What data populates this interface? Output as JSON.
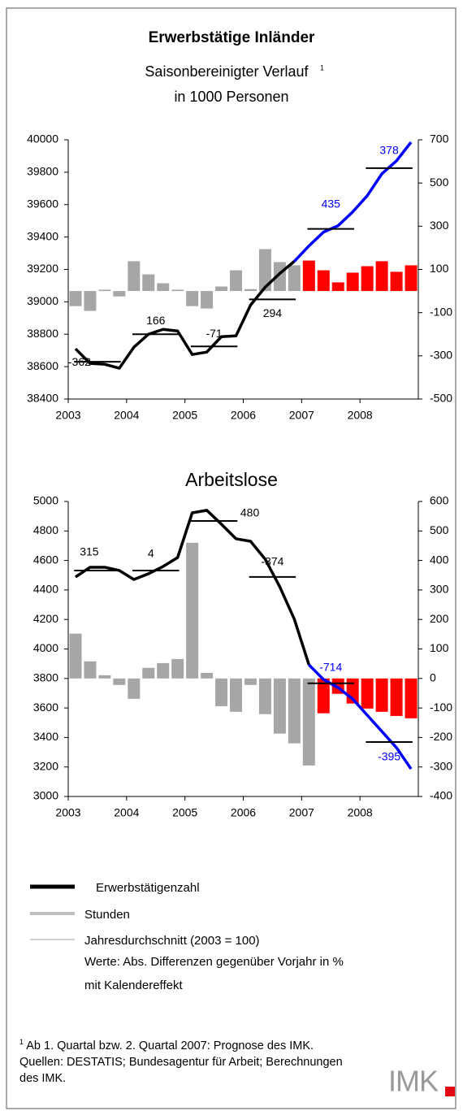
{
  "chart_data": [
    {
      "type": "combo",
      "title": "Erwerbstätige Inländer",
      "subtitle": "Saisonbereinigter Verlauf",
      "subtitle_note": "1",
      "unit": "in 1000 Personen",
      "xlim": [
        2003,
        2009
      ],
      "xticks": [
        2003,
        2004,
        2005,
        2006,
        2007,
        2008
      ],
      "ylim": [
        38400,
        40000
      ],
      "yticks": [
        38400,
        38600,
        38800,
        39000,
        39200,
        39400,
        39600,
        39800,
        40000
      ],
      "y2lim": [
        -500,
        700
      ],
      "y2ticks": [
        -500,
        -300,
        -100,
        100,
        300,
        500,
        700
      ],
      "x": [
        2003.125,
        2003.375,
        2003.625,
        2003.875,
        2004.125,
        2004.375,
        2004.625,
        2004.875,
        2005.125,
        2005.375,
        2005.625,
        2005.875,
        2006.125,
        2006.375,
        2006.625,
        2006.875,
        2007.125,
        2007.375,
        2007.625,
        2007.875,
        2008.125,
        2008.375,
        2008.625,
        2008.875
      ],
      "series": [
        {
          "kind": "bar",
          "axis": "y2",
          "color": "#a6a6a6",
          "values": [
            -70,
            -92,
            6,
            -25,
            138,
            77,
            36,
            6,
            -70,
            -81,
            21,
            96,
            9,
            194,
            134,
            119,
            null,
            null,
            null,
            null,
            null,
            null,
            null,
            null
          ]
        },
        {
          "kind": "bar",
          "axis": "y2",
          "color": "#ff0000",
          "values": [
            null,
            null,
            null,
            null,
            null,
            null,
            null,
            null,
            null,
            null,
            null,
            null,
            null,
            null,
            null,
            null,
            141,
            96,
            40,
            85,
            115,
            138,
            89,
            119
          ]
        },
        {
          "kind": "line",
          "color": "#000000",
          "values": [
            38710,
            38620,
            38615,
            38590,
            38720,
            38800,
            38830,
            38820,
            38675,
            38690,
            38785,
            38790,
            38980,
            39090,
            39175,
            39250,
            null,
            null,
            null,
            null,
            null,
            null,
            null,
            null
          ]
        },
        {
          "kind": "line",
          "color": "#0000ff",
          "values": [
            null,
            null,
            null,
            null,
            null,
            null,
            null,
            null,
            null,
            null,
            null,
            null,
            null,
            null,
            null,
            39250,
            39345,
            39430,
            39470,
            39555,
            39655,
            39790,
            39870,
            39985
          ]
        }
      ],
      "annual": {
        "x": [
          2003,
          2004,
          2005,
          2006,
          2007,
          2008
        ],
        "values": [
          38630,
          38800,
          38725,
          39015,
          39450,
          39825
        ],
        "labels": [
          -362,
          166,
          -71,
          294,
          435,
          378
        ],
        "label_colors": [
          "#000000",
          "#000000",
          "#000000",
          "#000000",
          "#0000ff",
          "#0000ff"
        ]
      }
    },
    {
      "type": "combo",
      "title": "Arbeitslose",
      "xlim": [
        2003,
        2009
      ],
      "xticks": [
        2003,
        2004,
        2005,
        2006,
        2007,
        2008
      ],
      "ylim": [
        3000,
        5000
      ],
      "yticks": [
        3000,
        3200,
        3400,
        3600,
        3800,
        4000,
        4200,
        4400,
        4600,
        4800,
        5000
      ],
      "y2lim": [
        -400,
        600
      ],
      "y2ticks": [
        -400,
        -300,
        -200,
        -100,
        0,
        100,
        200,
        300,
        400,
        500,
        600
      ],
      "x": [
        2003.125,
        2003.375,
        2003.625,
        2003.875,
        2004.125,
        2004.375,
        2004.625,
        2004.875,
        2005.125,
        2005.375,
        2005.625,
        2005.875,
        2006.125,
        2006.375,
        2006.625,
        2006.875,
        2007.125,
        2007.375,
        2007.625,
        2007.875,
        2008.125,
        2008.375,
        2008.625,
        2008.875
      ],
      "series": [
        {
          "kind": "bar",
          "axis": "y2",
          "color": "#a6a6a6",
          "values": [
            152,
            58,
            11,
            -22,
            -69,
            36,
            52,
            66,
            460,
            19,
            -94,
            -113,
            -22,
            -121,
            -187,
            -220,
            -295,
            null,
            null,
            null,
            null,
            null,
            null,
            null
          ]
        },
        {
          "kind": "bar",
          "axis": "y2",
          "color": "#ff0000",
          "values": [
            null,
            null,
            null,
            null,
            null,
            null,
            null,
            null,
            null,
            null,
            null,
            null,
            null,
            null,
            null,
            null,
            null,
            -118,
            -52,
            -85,
            -102,
            -113,
            -127,
            -135
          ]
        },
        {
          "kind": "line",
          "color": "#000000",
          "values": [
            4488,
            4554,
            4554,
            4532,
            4471,
            4510,
            4559,
            4620,
            4923,
            4940,
            4846,
            4747,
            4730,
            4609,
            4422,
            4202,
            3893,
            null,
            null,
            null,
            null,
            null,
            null,
            null
          ]
        },
        {
          "kind": "line",
          "color": "#0000ff",
          "values": [
            null,
            null,
            null,
            null,
            null,
            null,
            null,
            null,
            null,
            null,
            null,
            null,
            null,
            null,
            null,
            null,
            3893,
            3793,
            3738,
            3661,
            3551,
            3441,
            3331,
            3187
          ]
        }
      ],
      "annual": {
        "x": [
          2003,
          2004,
          2005,
          2006,
          2007,
          2008
        ],
        "values": [
          4532,
          4532,
          4868,
          4488,
          3767,
          3369
        ],
        "labels": [
          315,
          4,
          480,
          -374,
          -714,
          -395
        ],
        "label_colors": [
          "#000000",
          "#000000",
          "#000000",
          "#000000",
          "#0000ff",
          "#0000ff"
        ]
      }
    }
  ],
  "legend": {
    "items": [
      {
        "label": "Erwerbstätigenzahl",
        "color": "#000000"
      },
      {
        "label": "Stunden",
        "color": "#c0c0c0"
      },
      {
        "label": "Jahresdurchschnitt (2003 = 100)",
        "color": "#c0c0c0"
      }
    ],
    "notes": [
      "Werte: Abs. Differenzen gegenüber Vorjahr in %",
      "mit Kalendereffekt"
    ]
  },
  "footnote": {
    "mark": "1",
    "text": "Ab 1. Quartal bzw. 2. Quartal 2007: Prognose des IMK.",
    "sources": "Quellen: DESTATIS; Bundesagentur für Arbeit; Berechnungen des IMK."
  },
  "logo": "IMK"
}
